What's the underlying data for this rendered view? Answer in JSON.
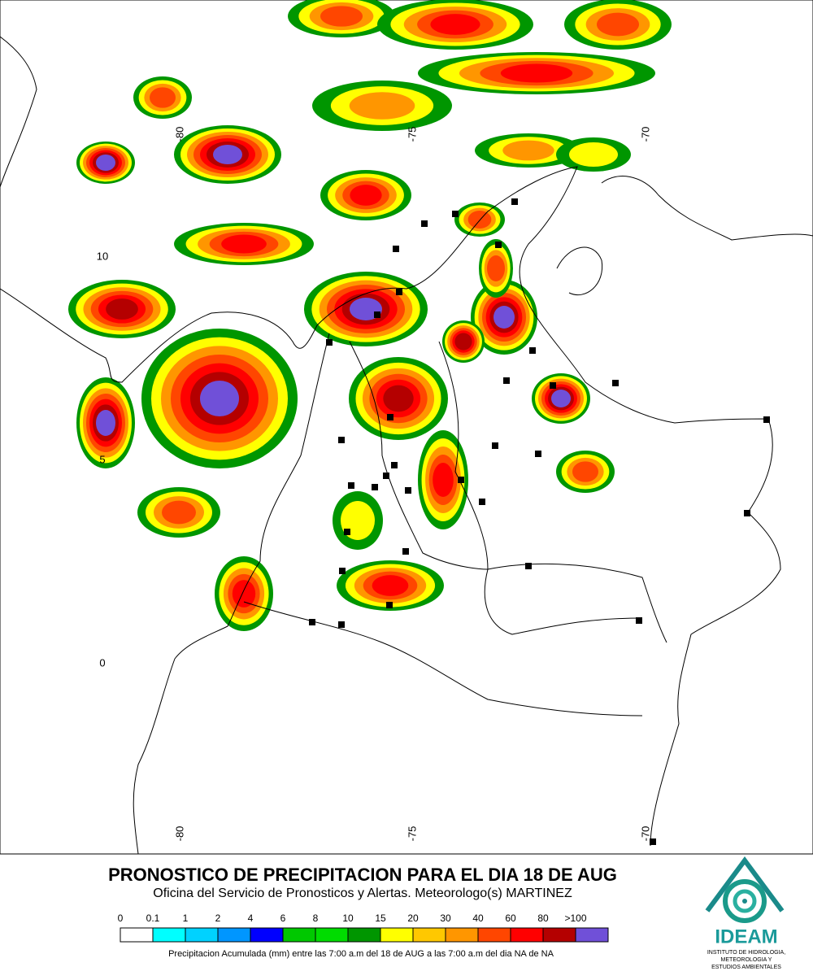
{
  "map": {
    "lon_labels_top": [
      "-80",
      "-75",
      "-70"
    ],
    "lon_labels_bottom": [
      "-80",
      "-75",
      "-70"
    ],
    "lat_labels": [
      "10",
      "5",
      "0"
    ]
  },
  "footer": {
    "title": "PRONOSTICO DE PRECIPITACION PARA EL DIA 18 DE AUG",
    "subtitle": "Oficina del Servicio de Pronosticos y Alertas. Meteorologo(s) MARTINEZ",
    "legend": [
      {
        "label": "0",
        "color": "#ffffff"
      },
      {
        "label": "0.1",
        "color": "#00ffff"
      },
      {
        "label": "1",
        "color": "#00d2ff"
      },
      {
        "label": "2",
        "color": "#0096ff"
      },
      {
        "label": "4",
        "color": "#0000ff"
      },
      {
        "label": "6",
        "color": "#00c800"
      },
      {
        "label": "8",
        "color": "#00dc00"
      },
      {
        "label": "10",
        "color": "#009600"
      },
      {
        "label": "15",
        "color": "#ffff00"
      },
      {
        "label": "20",
        "color": "#ffc800"
      },
      {
        "label": "30",
        "color": "#ff9600"
      },
      {
        "label": "40",
        "color": "#ff4600"
      },
      {
        "label": "60",
        "color": "#ff0000"
      },
      {
        "label": "80",
        "color": "#b40000"
      },
      {
        "label": ">100",
        "color": "#7050d8"
      }
    ],
    "note": "Precipitacion Acumulada (mm) entre las 7:00 a.m del 18 de AUG a las 7:00 a.m del dia NA de NA"
  },
  "logo": {
    "name": "IDEAM",
    "lines": [
      "INSTITUTO DE HIDROLOGIA,",
      "METEOROLOGIA Y",
      "ESTUDIOS AMBIENTALES"
    ]
  }
}
